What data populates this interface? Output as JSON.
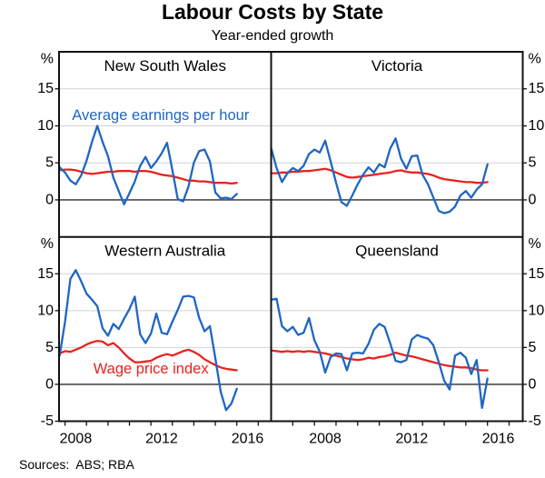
{
  "title": "Labour Costs by State",
  "subtitle": "Year-ended growth",
  "footer": "Sources:  ABS; RBA",
  "colors": {
    "earnings_blue": "#1f66c2",
    "wpi_red": "#e8231e",
    "gridline": "#d2d2d2",
    "zero_line": "#4d4d4d",
    "frame": "#111111"
  },
  "axis": {
    "unit": "%",
    "yticks_top": [
      15,
      10,
      5,
      0
    ],
    "yticks_bottom": [
      15,
      10,
      5,
      0,
      -5
    ],
    "x_label_years": [
      2008,
      2012,
      2016
    ]
  },
  "chart_data": {
    "type": "line",
    "title": "Labour Costs by State",
    "subtitle": "Year-ended growth",
    "unit": "%",
    "ylim": [
      -5,
      20
    ],
    "grid": "horizontal gridlines at 5, 10, 15; dark zero line",
    "x_step": 0.25,
    "series_names": [
      "Average earnings per hour",
      "Wage price index"
    ],
    "panels": [
      {
        "title": "New South Wales",
        "x_range": [
          2007.72,
          2017.6
        ],
        "x_start": 2007.75,
        "annotation": {
          "text": "Average earnings per hour",
          "year": 2012.45,
          "value": 11.4,
          "series": "earnings"
        },
        "earnings": [
          4.4,
          3.7,
          2.6,
          2.1,
          3.3,
          5.3,
          7.8,
          10.0,
          7.8,
          5.9,
          3.0,
          1.2,
          -0.6,
          0.9,
          2.5,
          4.6,
          5.8,
          4.3,
          5.2,
          6.3,
          7.7,
          4.0,
          0.1,
          -0.2,
          1.8,
          5.0,
          6.6,
          6.8,
          5.2,
          1.0,
          0.2,
          0.3,
          0.1,
          0.8
        ],
        "wpi": [
          4.0,
          4.1,
          4.1,
          4.0,
          3.8,
          3.6,
          3.5,
          3.6,
          3.7,
          3.8,
          3.8,
          3.9,
          3.9,
          3.9,
          3.8,
          3.9,
          3.9,
          3.8,
          3.6,
          3.4,
          3.3,
          3.2,
          3.0,
          2.8,
          2.6,
          2.6,
          2.5,
          2.5,
          2.4,
          2.3,
          2.3,
          2.3,
          2.2,
          2.3
        ]
      },
      {
        "title": "Victoria",
        "x_range": [
          2006.0,
          2017.63
        ],
        "x_start": 2006.0,
        "annotation": null,
        "earnings": [
          7.0,
          4.3,
          2.4,
          3.6,
          4.3,
          3.9,
          4.6,
          6.2,
          6.8,
          6.4,
          8.0,
          5.2,
          2.3,
          -0.3,
          -0.8,
          0.6,
          2.1,
          3.4,
          4.4,
          3.7,
          4.8,
          4.4,
          6.9,
          8.3,
          5.6,
          4.2,
          5.9,
          6.0,
          3.4,
          2.1,
          0.3,
          -1.5,
          -1.8,
          -1.6,
          -0.9,
          0.6,
          1.2,
          0.3,
          1.4,
          2.1,
          4.8
        ],
        "wpi": [
          3.6,
          3.6,
          3.7,
          3.7,
          3.8,
          3.8,
          3.9,
          3.9,
          4.0,
          4.1,
          4.2,
          4.0,
          3.7,
          3.4,
          3.1,
          3.0,
          3.1,
          3.2,
          3.3,
          3.4,
          3.5,
          3.6,
          3.7,
          3.9,
          4.0,
          3.8,
          3.7,
          3.7,
          3.6,
          3.5,
          3.3,
          3.0,
          2.8,
          2.7,
          2.6,
          2.5,
          2.4,
          2.4,
          2.3,
          2.3,
          2.4
        ]
      },
      {
        "title": "Western Australia",
        "x_range": [
          2007.72,
          2017.6
        ],
        "x_start": 2007.75,
        "annotation": {
          "text": "Wage price index",
          "year": 2012.0,
          "value": 2.1,
          "series": "wpi"
        },
        "earnings": [
          3.9,
          8.5,
          14.3,
          15.5,
          14.0,
          12.3,
          11.5,
          10.6,
          7.6,
          6.6,
          8.2,
          7.5,
          8.9,
          10.2,
          11.9,
          6.8,
          5.6,
          6.9,
          9.6,
          7.0,
          6.8,
          8.5,
          10.1,
          11.9,
          12.0,
          11.8,
          9.0,
          7.2,
          7.9,
          3.5,
          -1.0,
          -3.5,
          -2.6,
          -0.6
        ],
        "wpi": [
          4.2,
          4.5,
          4.4,
          4.7,
          5.0,
          5.4,
          5.7,
          5.9,
          5.8,
          5.3,
          5.6,
          5.0,
          4.2,
          3.5,
          3.0,
          3.0,
          3.1,
          3.2,
          3.6,
          3.9,
          4.1,
          3.9,
          4.2,
          4.5,
          4.7,
          4.4,
          4.0,
          3.4,
          3.0,
          2.6,
          2.3,
          2.1,
          2.0,
          1.9
        ]
      },
      {
        "title": "Queensland",
        "x_range": [
          2006.0,
          2017.63
        ],
        "x_start": 2006.0,
        "annotation": null,
        "earnings": [
          11.5,
          11.6,
          7.9,
          7.2,
          7.8,
          6.7,
          7.0,
          9.0,
          6.0,
          4.4,
          1.6,
          3.7,
          4.2,
          4.1,
          1.9,
          4.2,
          4.3,
          4.2,
          5.5,
          7.4,
          8.2,
          7.8,
          5.6,
          3.2,
          3.0,
          3.3,
          6.1,
          6.7,
          6.4,
          6.2,
          5.3,
          3.0,
          0.5,
          -0.7,
          3.9,
          4.3,
          3.6,
          1.4,
          3.3,
          -3.2,
          0.8
        ],
        "wpi": [
          4.6,
          4.5,
          4.4,
          4.5,
          4.4,
          4.5,
          4.4,
          4.5,
          4.4,
          4.3,
          4.2,
          4.0,
          3.9,
          3.7,
          3.5,
          3.4,
          3.3,
          3.4,
          3.6,
          3.5,
          3.7,
          3.8,
          4.0,
          4.3,
          4.1,
          3.9,
          3.8,
          3.6,
          3.4,
          3.2,
          3.0,
          2.8,
          2.6,
          2.5,
          2.4,
          2.3,
          2.3,
          2.2,
          2.0,
          1.9,
          1.9
        ]
      }
    ]
  }
}
